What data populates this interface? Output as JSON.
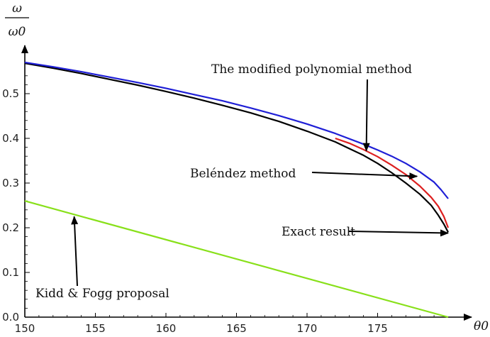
{
  "chart_data": {
    "type": "line",
    "title": "",
    "xlabel": "θ0",
    "ylabel_numerator": "ω",
    "ylabel_denominator": "ω0",
    "xlim": [
      150,
      180
    ],
    "ylim": [
      0,
      0.58
    ],
    "x_ticks": [
      "150",
      "155",
      "160",
      "165",
      "170",
      "175"
    ],
    "y_ticks": [
      "0.0",
      "0.1",
      "0.2",
      "0.3",
      "0.4",
      "0.5"
    ],
    "grid": false,
    "series": [
      {
        "name": "Exact result",
        "color": "#000000",
        "points": [
          [
            150,
            0.568
          ],
          [
            152,
            0.557
          ],
          [
            154,
            0.545
          ],
          [
            156,
            0.532
          ],
          [
            158,
            0.519
          ],
          [
            160,
            0.505
          ],
          [
            162,
            0.49
          ],
          [
            164,
            0.474
          ],
          [
            166,
            0.457
          ],
          [
            168,
            0.438
          ],
          [
            170,
            0.416
          ],
          [
            172,
            0.392
          ],
          [
            173,
            0.377
          ],
          [
            174,
            0.362
          ],
          [
            175,
            0.344
          ],
          [
            176,
            0.323
          ],
          [
            177,
            0.3
          ],
          [
            178,
            0.275
          ],
          [
            178.8,
            0.25
          ],
          [
            179.3,
            0.228
          ],
          [
            179.7,
            0.208
          ],
          [
            180,
            0.19
          ]
        ]
      },
      {
        "name": "The modified polynomial method",
        "color": "#1f1fd6",
        "points": [
          [
            150,
            0.57
          ],
          [
            152,
            0.56
          ],
          [
            154,
            0.549
          ],
          [
            156,
            0.537
          ],
          [
            158,
            0.525
          ],
          [
            160,
            0.512
          ],
          [
            162,
            0.498
          ],
          [
            164,
            0.484
          ],
          [
            166,
            0.468
          ],
          [
            168,
            0.451
          ],
          [
            170,
            0.432
          ],
          [
            172,
            0.411
          ],
          [
            174,
            0.387
          ],
          [
            175,
            0.374
          ],
          [
            176,
            0.36
          ],
          [
            177,
            0.344
          ],
          [
            178,
            0.325
          ],
          [
            179,
            0.302
          ],
          [
            179.5,
            0.285
          ],
          [
            180,
            0.265
          ]
        ]
      },
      {
        "name": "Beléndez method",
        "color": "#dd2020",
        "points": [
          [
            172,
            0.4
          ],
          [
            173,
            0.389
          ],
          [
            174,
            0.375
          ],
          [
            175,
            0.359
          ],
          [
            176,
            0.34
          ],
          [
            177,
            0.319
          ],
          [
            178,
            0.293
          ],
          [
            178.8,
            0.268
          ],
          [
            179.3,
            0.248
          ],
          [
            179.7,
            0.225
          ],
          [
            180,
            0.2
          ]
        ]
      },
      {
        "name": "Kidd & Fogg proposal",
        "color": "#88e01a",
        "points": [
          [
            150,
            0.26
          ],
          [
            180,
            0.0
          ]
        ]
      }
    ],
    "annotations": [
      {
        "text": "The modified polynomial method",
        "points_to": [
          174.2,
          0.372
        ]
      },
      {
        "text": "Beléndez method",
        "points_to": [
          177.8,
          0.315
        ]
      },
      {
        "text": "Exact result",
        "points_to": [
          180,
          0.188
        ]
      },
      {
        "text": "Kidd  & Fogg proposal",
        "points_to": [
          153.5,
          0.225
        ]
      }
    ]
  }
}
